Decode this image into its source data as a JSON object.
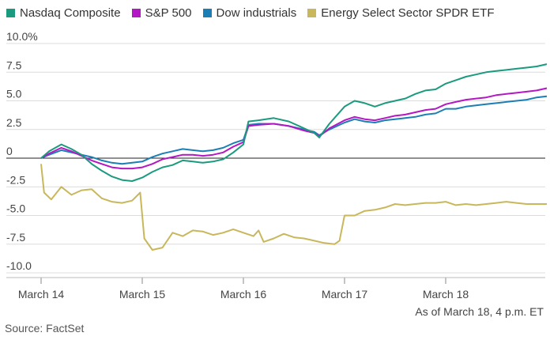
{
  "chart_data": {
    "type": "line",
    "title": "",
    "ylabel": "",
    "xlabel": "",
    "ylim": [
      -10,
      10
    ],
    "yticks": [
      10,
      7.5,
      5,
      2.5,
      0,
      -2.5,
      -5,
      -7.5,
      -10
    ],
    "ytick_labels": [
      "10.0%",
      "7.5",
      "5.0",
      "2.5",
      "0",
      "-2.5",
      "-5.0",
      "-7.5",
      "-10.0"
    ],
    "xlim": [
      0,
      5
    ],
    "xticks": [
      0,
      1,
      2,
      3,
      4
    ],
    "xtick_labels": [
      "March 14",
      "March 15",
      "March 16",
      "March 17",
      "March 18"
    ],
    "legend_position": "top",
    "grid": "horizontal",
    "series": [
      {
        "name": "Nasdaq Composite",
        "color": "#1a9a7e",
        "points": [
          [
            0,
            0
          ],
          [
            0.08,
            0.6
          ],
          [
            0.2,
            1.2
          ],
          [
            0.3,
            0.8
          ],
          [
            0.4,
            0.3
          ],
          [
            0.5,
            -0.5
          ],
          [
            0.6,
            -1.1
          ],
          [
            0.7,
            -1.6
          ],
          [
            0.8,
            -1.9
          ],
          [
            0.9,
            -2.0
          ],
          [
            1.0,
            -1.7
          ],
          [
            1.1,
            -1.2
          ],
          [
            1.2,
            -0.8
          ],
          [
            1.3,
            -0.6
          ],
          [
            1.4,
            -0.2
          ],
          [
            1.5,
            -0.3
          ],
          [
            1.6,
            -0.4
          ],
          [
            1.7,
            -0.3
          ],
          [
            1.8,
            -0.1
          ],
          [
            1.9,
            0.5
          ],
          [
            2.0,
            1.2
          ],
          [
            2.05,
            3.2
          ],
          [
            2.15,
            3.3
          ],
          [
            2.3,
            3.5
          ],
          [
            2.45,
            3.2
          ],
          [
            2.6,
            2.6
          ],
          [
            2.7,
            2.2
          ],
          [
            2.75,
            1.8
          ],
          [
            2.85,
            3.0
          ],
          [
            3.0,
            4.5
          ],
          [
            3.1,
            5.0
          ],
          [
            3.2,
            4.8
          ],
          [
            3.3,
            4.5
          ],
          [
            3.4,
            4.8
          ],
          [
            3.5,
            5.0
          ],
          [
            3.6,
            5.2
          ],
          [
            3.7,
            5.6
          ],
          [
            3.8,
            5.9
          ],
          [
            3.9,
            6.0
          ],
          [
            4.0,
            6.5
          ],
          [
            4.1,
            6.8
          ],
          [
            4.2,
            7.1
          ],
          [
            4.3,
            7.3
          ],
          [
            4.4,
            7.5
          ],
          [
            4.5,
            7.6
          ],
          [
            4.6,
            7.7
          ],
          [
            4.7,
            7.8
          ],
          [
            4.8,
            7.9
          ],
          [
            4.9,
            8.0
          ],
          [
            5.0,
            8.2
          ]
        ]
      },
      {
        "name": "S&P 500",
        "color": "#b417c4",
        "points": [
          [
            0,
            0
          ],
          [
            0.08,
            0.4
          ],
          [
            0.2,
            0.9
          ],
          [
            0.3,
            0.6
          ],
          [
            0.4,
            0.2
          ],
          [
            0.5,
            -0.2
          ],
          [
            0.6,
            -0.5
          ],
          [
            0.7,
            -0.8
          ],
          [
            0.8,
            -0.9
          ],
          [
            0.9,
            -0.9
          ],
          [
            1.0,
            -0.8
          ],
          [
            1.1,
            -0.5
          ],
          [
            1.2,
            -0.1
          ],
          [
            1.3,
            0.1
          ],
          [
            1.4,
            0.3
          ],
          [
            1.5,
            0.3
          ],
          [
            1.6,
            0.2
          ],
          [
            1.7,
            0.3
          ],
          [
            1.8,
            0.5
          ],
          [
            1.9,
            1.0
          ],
          [
            2.0,
            1.4
          ],
          [
            2.05,
            2.8
          ],
          [
            2.15,
            2.9
          ],
          [
            2.3,
            3.0
          ],
          [
            2.45,
            2.8
          ],
          [
            2.6,
            2.4
          ],
          [
            2.7,
            2.2
          ],
          [
            2.75,
            1.9
          ],
          [
            2.85,
            2.6
          ],
          [
            3.0,
            3.3
          ],
          [
            3.1,
            3.6
          ],
          [
            3.2,
            3.4
          ],
          [
            3.3,
            3.3
          ],
          [
            3.4,
            3.5
          ],
          [
            3.5,
            3.7
          ],
          [
            3.6,
            3.8
          ],
          [
            3.7,
            4.0
          ],
          [
            3.8,
            4.2
          ],
          [
            3.9,
            4.3
          ],
          [
            4.0,
            4.7
          ],
          [
            4.1,
            4.9
          ],
          [
            4.2,
            5.1
          ],
          [
            4.3,
            5.2
          ],
          [
            4.4,
            5.3
          ],
          [
            4.5,
            5.5
          ],
          [
            4.6,
            5.6
          ],
          [
            4.7,
            5.7
          ],
          [
            4.8,
            5.8
          ],
          [
            4.9,
            5.9
          ],
          [
            5.0,
            6.1
          ]
        ]
      },
      {
        "name": "Dow industrials",
        "color": "#1b7fb5",
        "points": [
          [
            0,
            0
          ],
          [
            0.08,
            0.3
          ],
          [
            0.2,
            0.7
          ],
          [
            0.3,
            0.5
          ],
          [
            0.4,
            0.3
          ],
          [
            0.5,
            0.1
          ],
          [
            0.6,
            -0.2
          ],
          [
            0.7,
            -0.4
          ],
          [
            0.8,
            -0.5
          ],
          [
            0.9,
            -0.4
          ],
          [
            1.0,
            -0.3
          ],
          [
            1.1,
            0.1
          ],
          [
            1.2,
            0.4
          ],
          [
            1.3,
            0.6
          ],
          [
            1.4,
            0.8
          ],
          [
            1.5,
            0.7
          ],
          [
            1.6,
            0.6
          ],
          [
            1.7,
            0.7
          ],
          [
            1.8,
            0.9
          ],
          [
            1.9,
            1.3
          ],
          [
            2.0,
            1.6
          ],
          [
            2.05,
            2.9
          ],
          [
            2.15,
            3.0
          ],
          [
            2.3,
            3.0
          ],
          [
            2.45,
            2.8
          ],
          [
            2.6,
            2.5
          ],
          [
            2.7,
            2.3
          ],
          [
            2.75,
            2.0
          ],
          [
            2.85,
            2.5
          ],
          [
            3.0,
            3.1
          ],
          [
            3.1,
            3.4
          ],
          [
            3.2,
            3.2
          ],
          [
            3.3,
            3.1
          ],
          [
            3.4,
            3.3
          ],
          [
            3.5,
            3.4
          ],
          [
            3.6,
            3.5
          ],
          [
            3.7,
            3.6
          ],
          [
            3.8,
            3.8
          ],
          [
            3.9,
            3.9
          ],
          [
            4.0,
            4.3
          ],
          [
            4.1,
            4.3
          ],
          [
            4.2,
            4.5
          ],
          [
            4.3,
            4.6
          ],
          [
            4.4,
            4.7
          ],
          [
            4.5,
            4.8
          ],
          [
            4.6,
            4.9
          ],
          [
            4.7,
            5.0
          ],
          [
            4.8,
            5.1
          ],
          [
            4.9,
            5.3
          ],
          [
            5.0,
            5.4
          ]
        ]
      },
      {
        "name": "Energy Select Sector SPDR ETF",
        "color": "#c9b75b",
        "points": [
          [
            0,
            -0.5
          ],
          [
            0.03,
            -3.0
          ],
          [
            0.1,
            -3.6
          ],
          [
            0.2,
            -2.5
          ],
          [
            0.3,
            -3.2
          ],
          [
            0.4,
            -2.8
          ],
          [
            0.5,
            -2.7
          ],
          [
            0.6,
            -3.5
          ],
          [
            0.7,
            -3.8
          ],
          [
            0.8,
            -3.9
          ],
          [
            0.9,
            -3.7
          ],
          [
            0.98,
            -3.0
          ],
          [
            1.02,
            -7.0
          ],
          [
            1.1,
            -8.0
          ],
          [
            1.2,
            -7.8
          ],
          [
            1.3,
            -6.5
          ],
          [
            1.4,
            -6.8
          ],
          [
            1.5,
            -6.3
          ],
          [
            1.6,
            -6.4
          ],
          [
            1.7,
            -6.7
          ],
          [
            1.8,
            -6.5
          ],
          [
            1.9,
            -6.2
          ],
          [
            2.0,
            -6.5
          ],
          [
            2.1,
            -6.8
          ],
          [
            2.15,
            -6.3
          ],
          [
            2.2,
            -7.3
          ],
          [
            2.3,
            -7.0
          ],
          [
            2.4,
            -6.6
          ],
          [
            2.5,
            -6.9
          ],
          [
            2.6,
            -7.0
          ],
          [
            2.7,
            -7.2
          ],
          [
            2.8,
            -7.4
          ],
          [
            2.9,
            -7.5
          ],
          [
            2.95,
            -7.2
          ],
          [
            3.0,
            -5.0
          ],
          [
            3.1,
            -5.0
          ],
          [
            3.2,
            -4.6
          ],
          [
            3.3,
            -4.5
          ],
          [
            3.4,
            -4.3
          ],
          [
            3.5,
            -4.0
          ],
          [
            3.6,
            -4.1
          ],
          [
            3.7,
            -4.0
          ],
          [
            3.8,
            -3.9
          ],
          [
            3.9,
            -3.9
          ],
          [
            4.0,
            -3.8
          ],
          [
            4.1,
            -4.1
          ],
          [
            4.2,
            -4.0
          ],
          [
            4.3,
            -4.1
          ],
          [
            4.4,
            -4.0
          ],
          [
            4.5,
            -3.9
          ],
          [
            4.6,
            -3.8
          ],
          [
            4.7,
            -3.9
          ],
          [
            4.8,
            -4.0
          ],
          [
            4.9,
            -4.0
          ],
          [
            5.0,
            -4.0
          ]
        ]
      }
    ]
  },
  "footnote": "As of March 18, 4 p.m. ET",
  "source": "Source: FactSet"
}
